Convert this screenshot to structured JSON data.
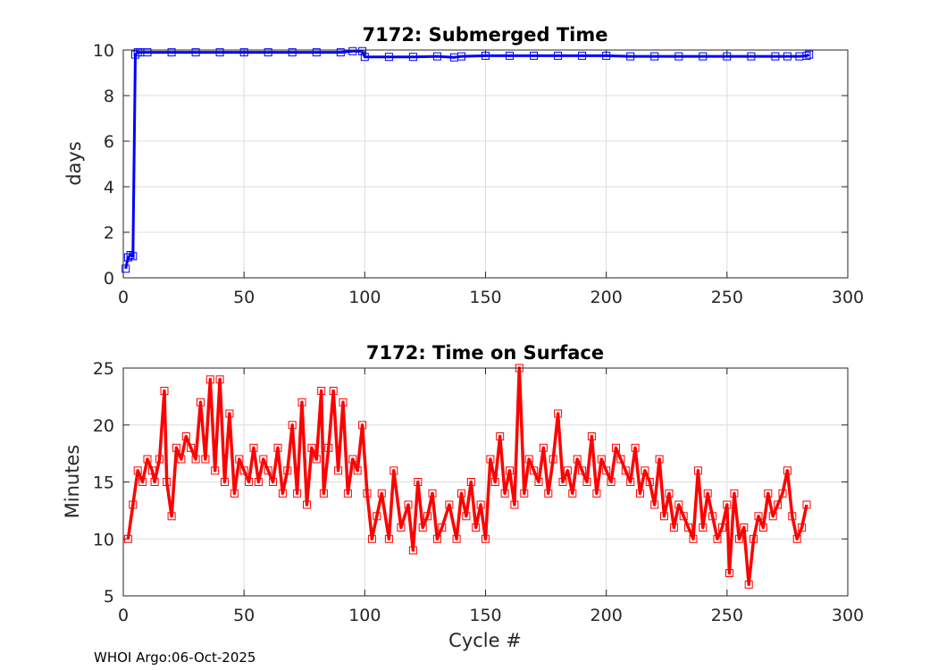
{
  "footer": "WHOI Argo:06-Oct-2025",
  "chart_data": [
    {
      "type": "line",
      "title": "7172: Submerged Time",
      "xlabel": "",
      "ylabel": "days",
      "xlim": [
        0,
        300
      ],
      "ylim": [
        0,
        10
      ],
      "xticks": [
        0,
        50,
        100,
        150,
        200,
        250,
        300
      ],
      "yticks": [
        0,
        2,
        4,
        6,
        8,
        10
      ],
      "grid": true,
      "marker": "square",
      "color": "#0000ff",
      "series": [
        {
          "x": [
            1,
            2,
            3,
            4,
            5,
            6,
            7,
            10,
            20,
            30,
            40,
            50,
            60,
            70,
            80,
            90,
            95,
            99,
            100,
            110,
            120,
            130,
            137,
            140,
            150,
            160,
            170,
            180,
            190,
            200,
            210,
            220,
            230,
            240,
            250,
            260,
            270,
            275,
            280,
            283,
            284
          ],
          "y": [
            0.4,
            0.9,
            1.0,
            0.95,
            9.8,
            9.9,
            9.9,
            9.9,
            9.9,
            9.9,
            9.9,
            9.9,
            9.9,
            9.9,
            9.9,
            9.9,
            9.95,
            9.95,
            9.7,
            9.7,
            9.7,
            9.72,
            9.68,
            9.72,
            9.75,
            9.75,
            9.75,
            9.75,
            9.75,
            9.75,
            9.72,
            9.72,
            9.72,
            9.72,
            9.72,
            9.72,
            9.72,
            9.72,
            9.72,
            9.75,
            9.8
          ]
        }
      ]
    },
    {
      "type": "line",
      "title": "7172: Time on Surface",
      "xlabel": "Cycle #",
      "ylabel": "Minutes",
      "xlim": [
        0,
        300
      ],
      "ylim": [
        5,
        25
      ],
      "xticks": [
        0,
        50,
        100,
        150,
        200,
        250,
        300
      ],
      "yticks": [
        5,
        10,
        15,
        20,
        25
      ],
      "grid": true,
      "marker": "square",
      "color": "#ff0000",
      "series": [
        {
          "x": [
            2,
            4,
            6,
            8,
            10,
            12,
            13,
            15,
            17,
            18,
            20,
            22,
            24,
            26,
            28,
            30,
            32,
            34,
            36,
            38,
            40,
            42,
            44,
            46,
            48,
            50,
            52,
            54,
            56,
            58,
            60,
            62,
            64,
            66,
            68,
            70,
            72,
            74,
            76,
            78,
            80,
            82,
            83,
            85,
            87,
            89,
            91,
            93,
            95,
            97,
            99,
            101,
            103,
            105,
            107,
            110,
            112,
            115,
            118,
            120,
            122,
            124,
            126,
            128,
            130,
            132,
            135,
            138,
            140,
            142,
            144,
            146,
            148,
            150,
            152,
            154,
            156,
            158,
            160,
            162,
            164,
            166,
            168,
            170,
            172,
            174,
            176,
            178,
            180,
            182,
            184,
            186,
            188,
            190,
            192,
            194,
            196,
            198,
            200,
            202,
            204,
            206,
            208,
            210,
            212,
            214,
            216,
            218,
            220,
            222,
            224,
            226,
            228,
            230,
            232,
            234,
            236,
            238,
            240,
            242,
            244,
            246,
            248,
            250,
            251,
            253,
            255,
            257,
            259,
            261,
            263,
            265,
            267,
            269,
            271,
            273,
            275,
            277,
            279,
            281,
            283
          ],
          "y": [
            10,
            13,
            16,
            15,
            17,
            16,
            15,
            17,
            23,
            15,
            12,
            18,
            17,
            19,
            18,
            17,
            22,
            17,
            24,
            16,
            24,
            15,
            21,
            14,
            17,
            16,
            15,
            18,
            15,
            17,
            16,
            15,
            18,
            14,
            16,
            20,
            14,
            22,
            13,
            18,
            17,
            23,
            14,
            18,
            23,
            16,
            22,
            14,
            17,
            16,
            20,
            14,
            10,
            12,
            14,
            10,
            16,
            11,
            13,
            9,
            15,
            11,
            12,
            14,
            10,
            11,
            13,
            10,
            14,
            12,
            15,
            11,
            13,
            10,
            17,
            15,
            19,
            14,
            16,
            13,
            25,
            14,
            17,
            16,
            15,
            18,
            14,
            17,
            21,
            15,
            16,
            14,
            17,
            16,
            15,
            19,
            14,
            17,
            16,
            15,
            18,
            17,
            16,
            15,
            18,
            14,
            16,
            15,
            13,
            17,
            12,
            14,
            11,
            13,
            12,
            11,
            10,
            16,
            11,
            14,
            12,
            10,
            11,
            13,
            7,
            14,
            10,
            11,
            6,
            10,
            12,
            11,
            14,
            12,
            13,
            14,
            16,
            12,
            10,
            11,
            13
          ]
        }
      ]
    }
  ]
}
